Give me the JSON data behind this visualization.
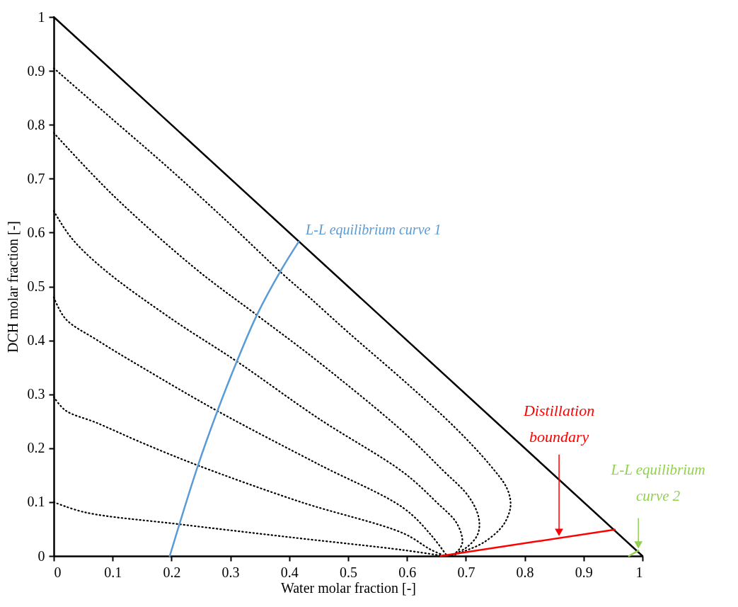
{
  "chart_data": {
    "type": "line",
    "xlabel": "Water molar fraction [-]",
    "ylabel": "DCH molar fraction [-]",
    "xlim": [
      0,
      1
    ],
    "ylim": [
      0,
      1
    ],
    "xticks": [
      0,
      0.1,
      0.2,
      0.3,
      0.4,
      0.5,
      0.6,
      0.7,
      0.8,
      0.9,
      1
    ],
    "yticks": [
      0,
      0.1,
      0.2,
      0.3,
      0.4,
      0.5,
      0.6,
      0.7,
      0.8,
      0.9,
      1
    ],
    "series": [
      {
        "color": "#000000",
        "line_style": "solid",
        "x": [
          0,
          1
        ],
        "values": [
          1,
          0
        ]
      },
      {
        "color": "#000000",
        "line_style": "dotted",
        "x": [
          0,
          0.1,
          0.2,
          0.3,
          0.387,
          0.434,
          0.5,
          0.598,
          0.68,
          0.74,
          0.77,
          0.776,
          0.77,
          0.758,
          0.73,
          0.7,
          0.675
        ],
        "values": [
          0.905,
          0.81,
          0.715,
          0.615,
          0.525,
          0.48,
          0.415,
          0.322,
          0.24,
          0.17,
          0.125,
          0.095,
          0.07,
          0.05,
          0.025,
          0.01,
          0
        ]
      },
      {
        "color": "#000000",
        "line_style": "dotted",
        "x": [
          0,
          0.1,
          0.242,
          0.345,
          0.45,
          0.594,
          0.66,
          0.705,
          0.722,
          0.72,
          0.7,
          0.672
        ],
        "values": [
          0.785,
          0.67,
          0.532,
          0.447,
          0.36,
          0.23,
          0.16,
          0.11,
          0.07,
          0.04,
          0.015,
          0
        ]
      },
      {
        "color": "#000000",
        "line_style": "dotted",
        "x": [
          0,
          0.03,
          0.085,
          0.2,
          0.311,
          0.45,
          0.594,
          0.65,
          0.685,
          0.694,
          0.685,
          0.67
        ],
        "values": [
          0.64,
          0.59,
          0.532,
          0.44,
          0.361,
          0.255,
          0.155,
          0.1,
          0.06,
          0.025,
          0.008,
          0
        ]
      },
      {
        "color": "#000000",
        "line_style": "dotted",
        "x": [
          0,
          0.02,
          0.073,
          0.15,
          0.278,
          0.45,
          0.594,
          0.64,
          0.668
        ],
        "values": [
          0.48,
          0.44,
          0.401,
          0.35,
          0.269,
          0.17,
          0.089,
          0.04,
          0
        ]
      },
      {
        "color": "#000000",
        "line_style": "dotted",
        "x": [
          0,
          0.02,
          0.073,
          0.15,
          0.245,
          0.42,
          0.594,
          0.64,
          0.665
        ],
        "values": [
          0.295,
          0.27,
          0.247,
          0.21,
          0.168,
          0.1,
          0.042,
          0.012,
          0
        ]
      },
      {
        "color": "#000000",
        "line_style": "dotted",
        "x": [
          0,
          0.053,
          0.213,
          0.4,
          0.594,
          0.662
        ],
        "values": [
          0.1,
          0.081,
          0.059,
          0.035,
          0.011,
          0
        ]
      },
      {
        "name": "L-L equilibrium curve 1",
        "color": "#5b9bd5",
        "line_style": "solid",
        "x": [
          0.197,
          0.245,
          0.278,
          0.311,
          0.345,
          0.387,
          0.416
        ],
        "values": [
          0,
          0.168,
          0.269,
          0.361,
          0.447,
          0.532,
          0.583
        ]
      },
      {
        "name": "Distillation boundary",
        "color": "#ff0000",
        "line_style": "solid",
        "x": [
          0.657,
          0.953
        ],
        "values": [
          0,
          0.049
        ]
      },
      {
        "name": "L-L  equilibrium curve 2",
        "color": "#92d050",
        "line_style": "solid",
        "x": [
          0.977,
          0.993
        ],
        "values": [
          0,
          0.01
        ]
      }
    ]
  }
}
